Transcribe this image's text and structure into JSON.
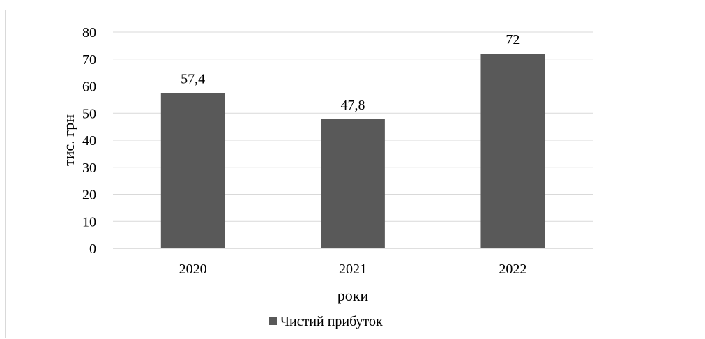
{
  "chart_data": {
    "type": "bar",
    "categories": [
      "2020",
      "2021",
      "2022"
    ],
    "series": [
      {
        "name": "Чистий прибуток",
        "values": [
          57.4,
          47.8,
          72
        ],
        "labels": [
          "57,4",
          "47,8",
          "72"
        ]
      }
    ],
    "xlabel": "роки",
    "ylabel": "тис. грн",
    "ylim": [
      0,
      80
    ],
    "yticks": [
      0,
      10,
      20,
      30,
      40,
      50,
      60,
      70,
      80
    ],
    "grid": true,
    "legend_position": "bottom",
    "colors": {
      "bar": "#595959",
      "grid": "#d9d9d9",
      "axis": "#bfbfbf"
    }
  }
}
